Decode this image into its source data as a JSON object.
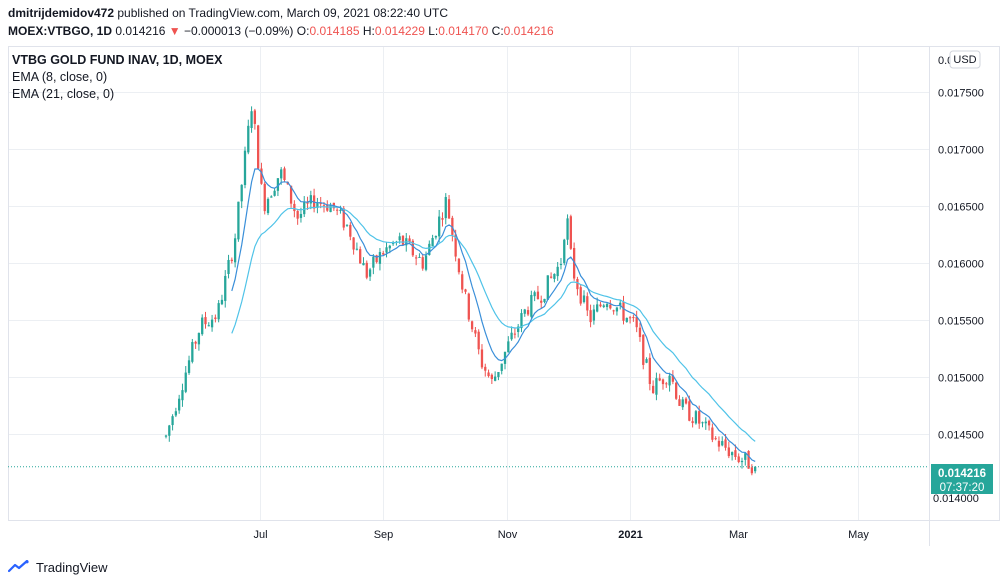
{
  "header": {
    "author": "dmitrijdemidov472",
    "published_text": "published on TradingView.com, March 09, 2021 08:22:40 UTC",
    "symbol": "MOEX:VTBGO, 1D",
    "last": "0.014216",
    "change_arrow": "▼",
    "change": "−0.000013 (−0.09%)",
    "o_label": "O:",
    "o_value": "0.014185",
    "h_label": "H:",
    "h_value": "0.014229",
    "l_label": "L:",
    "l_value": "0.014170",
    "c_label": "C:",
    "c_value": "0.014216"
  },
  "legend": {
    "instrument": "VTBG GOLD FUND INAV, 1D, MOEX",
    "ema8": "EMA (8, close, 0)",
    "ema21": "EMA (21, close, 0)"
  },
  "price_axis": {
    "currency": "USD",
    "top_partial": "0.0",
    "last_label": "0.014216",
    "countdown": "07:37:20",
    "bottom_partial": "0.014000"
  },
  "footer": {
    "brand": "TradingView"
  },
  "colors": {
    "up": "#26a69a",
    "down": "#ef5350",
    "ema8": "#3a8fd9",
    "ema21": "#4fc3e8",
    "grid": "#eceff3",
    "text": "#131722",
    "badge": "#26a69a"
  },
  "chart_data": {
    "type": "candlestick",
    "title": "VTBG GOLD FUND INAV, 1D, MOEX",
    "ylim": [
      0.01375,
      0.0179
    ],
    "yticks": [
      0.0145,
      0.015,
      0.0155,
      0.016,
      0.0165,
      0.017,
      0.0175
    ],
    "ytick_labels": [
      "0.014500",
      "0.015000",
      "0.015500",
      "0.016000",
      "0.016500",
      "0.017000",
      "0.017500"
    ],
    "xticks": [
      {
        "label": "Jul",
        "t": 0.164,
        "bold": false
      },
      {
        "label": "Sep",
        "t": 0.379,
        "bold": false
      },
      {
        "label": "Nov",
        "t": 0.596,
        "bold": false
      },
      {
        "label": "2021",
        "t": 0.811,
        "bold": true
      },
      {
        "label": "Mar",
        "t": 1.0,
        "bold": false
      },
      {
        "label": "May",
        "t": 1.21,
        "bold": false
      }
    ],
    "anchors": [
      [
        0.0,
        0.01448
      ],
      [
        0.025,
        0.0149
      ],
      [
        0.06,
        0.01545
      ],
      [
        0.09,
        0.01555
      ],
      [
        0.12,
        0.0162
      ],
      [
        0.15,
        0.0174
      ],
      [
        0.17,
        0.0165
      ],
      [
        0.2,
        0.0168
      ],
      [
        0.23,
        0.0164
      ],
      [
        0.26,
        0.01655
      ],
      [
        0.29,
        0.0165
      ],
      [
        0.32,
        0.0163
      ],
      [
        0.35,
        0.0159
      ],
      [
        0.38,
        0.0161
      ],
      [
        0.41,
        0.0162
      ],
      [
        0.45,
        0.016
      ],
      [
        0.49,
        0.01655
      ],
      [
        0.52,
        0.01575
      ],
      [
        0.55,
        0.01515
      ],
      [
        0.57,
        0.01495
      ],
      [
        0.6,
        0.0153
      ],
      [
        0.63,
        0.0156
      ],
      [
        0.66,
        0.01575
      ],
      [
        0.69,
        0.016
      ],
      [
        0.7,
        0.01645
      ],
      [
        0.71,
        0.01595
      ],
      [
        0.74,
        0.0155
      ],
      [
        0.77,
        0.0157
      ],
      [
        0.8,
        0.01555
      ],
      [
        0.82,
        0.01545
      ],
      [
        0.85,
        0.0149
      ],
      [
        0.88,
        0.01505
      ],
      [
        0.9,
        0.01475
      ],
      [
        0.93,
        0.01462
      ],
      [
        0.96,
        0.01445
      ],
      [
        1.0,
        0.0143
      ],
      [
        1.03,
        0.01422
      ]
    ],
    "first_candle_t": 0.0,
    "last_candle_t": 1.03,
    "last_price": 0.014216
  }
}
